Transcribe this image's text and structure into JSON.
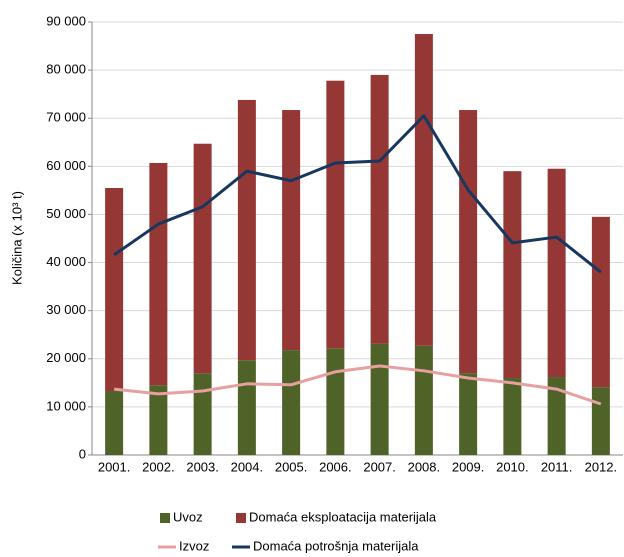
{
  "chart_data": {
    "type": "bar",
    "y_label": "Količina  (x 10³ t)",
    "categories": [
      "2001.",
      "2002.",
      "2003.",
      "2004.",
      "2005.",
      "2006.",
      "2007.",
      "2008.",
      "2009.",
      "2010.",
      "2011.",
      "2012."
    ],
    "series": [
      {
        "name": "Uvoz",
        "color": "#4f6228",
        "kind": "bar",
        "values": [
          13300,
          14500,
          17000,
          19700,
          21800,
          22200,
          23100,
          22700,
          17000,
          16000,
          16200,
          14100
        ]
      },
      {
        "name": "Domaća eksploatacija materijala",
        "color": "#953735",
        "kind": "bar",
        "values": [
          42200,
          46200,
          47700,
          54100,
          49900,
          55600,
          55900,
          64800,
          54700,
          43000,
          43300,
          35400
        ]
      },
      {
        "name": "Izvoz",
        "color": "#e6a0a0",
        "kind": "line",
        "values": [
          13700,
          12700,
          13300,
          14800,
          14600,
          17300,
          18500,
          17500,
          16000,
          15000,
          13700,
          10600
        ]
      },
      {
        "name": "Domaća potrošnja materijala",
        "color": "#17375e",
        "kind": "line",
        "values": [
          41600,
          48000,
          51600,
          59000,
          57000,
          60700,
          61100,
          70500,
          55100,
          44100,
          45300,
          38000
        ]
      }
    ],
    "ylim": [
      0,
      90000
    ],
    "yticks": [
      0,
      {
        "value": 10000,
        "label": "10 000"
      },
      {
        "value": 20000,
        "label": "20 000"
      },
      {
        "value": 30000,
        "label": "30 000"
      },
      {
        "value": 40000,
        "label": "40 000"
      },
      {
        "value": 50000,
        "label": "50 000"
      },
      {
        "value": 60000,
        "label": "60 000"
      },
      {
        "value": 70000,
        "label": "70 000"
      },
      {
        "value": 80000,
        "label": "80 000"
      },
      {
        "value": 90000,
        "label": "90 000"
      }
    ],
    "grid": true
  }
}
